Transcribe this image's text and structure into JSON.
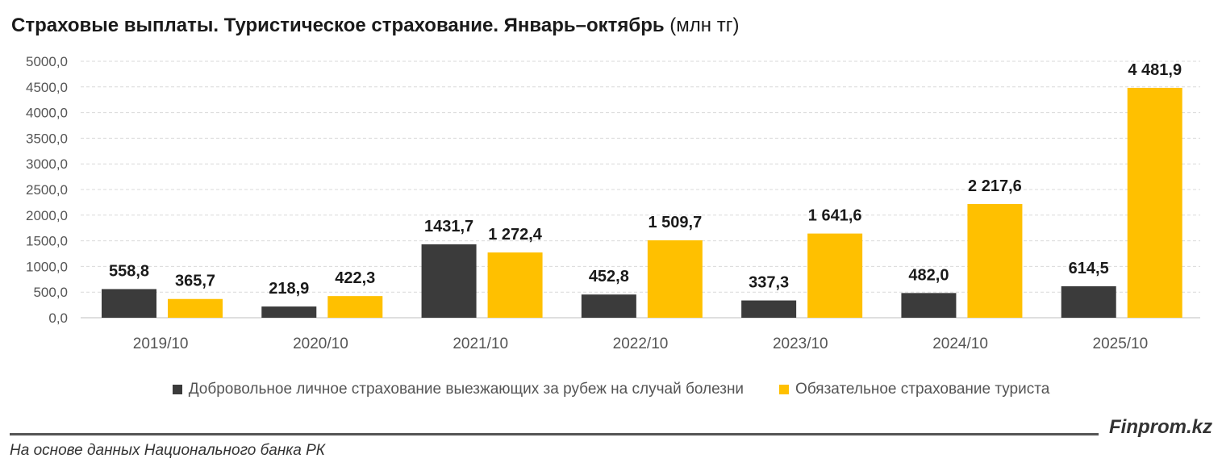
{
  "header": {
    "title_bold": "Страховые выплаты. Туристическое страхование. Январь–октябрь",
    "title_unit": "(млн тг)"
  },
  "chart_data": {
    "type": "bar",
    "title": "Страховые выплаты. Туристическое страхование. Январь–октябрь (млн тг)",
    "xlabel": "",
    "ylabel": "",
    "ylim": [
      0,
      5000
    ],
    "y_ticks": [
      "0,0",
      "500,0",
      "1000,0",
      "1500,0",
      "2000,0",
      "2500,0",
      "3000,0",
      "3500,0",
      "4000,0",
      "4500,0",
      "5000,0"
    ],
    "categories": [
      "2019/10",
      "2020/10",
      "2021/10",
      "2022/10",
      "2023/10",
      "2024/10",
      "2025/10"
    ],
    "grid": true,
    "legend_position": "bottom",
    "series": [
      {
        "name": "Добровольное личное страхование выезжающих за рубеж на случай болезни",
        "color": "#3b3b3b",
        "values": [
          558.8,
          218.9,
          1431.7,
          452.8,
          337.3,
          482.0,
          614.5
        ],
        "labels": [
          "558,8",
          "218,9",
          "1431,7",
          "452,8",
          "337,3",
          "482,0",
          "614,5"
        ]
      },
      {
        "name": "Обязательное страхование туриста",
        "color": "#ffc000",
        "values": [
          365.7,
          422.3,
          1272.4,
          1509.7,
          1641.6,
          2217.6,
          4481.9
        ],
        "labels": [
          "365,7",
          "422,3",
          "1 272,4",
          "1 509,7",
          "1 641,6",
          "2 217,6",
          "4 481,9"
        ]
      }
    ]
  },
  "footer": {
    "brand": "Finprom.kz",
    "source": "На основе данных Национального банка РК"
  }
}
